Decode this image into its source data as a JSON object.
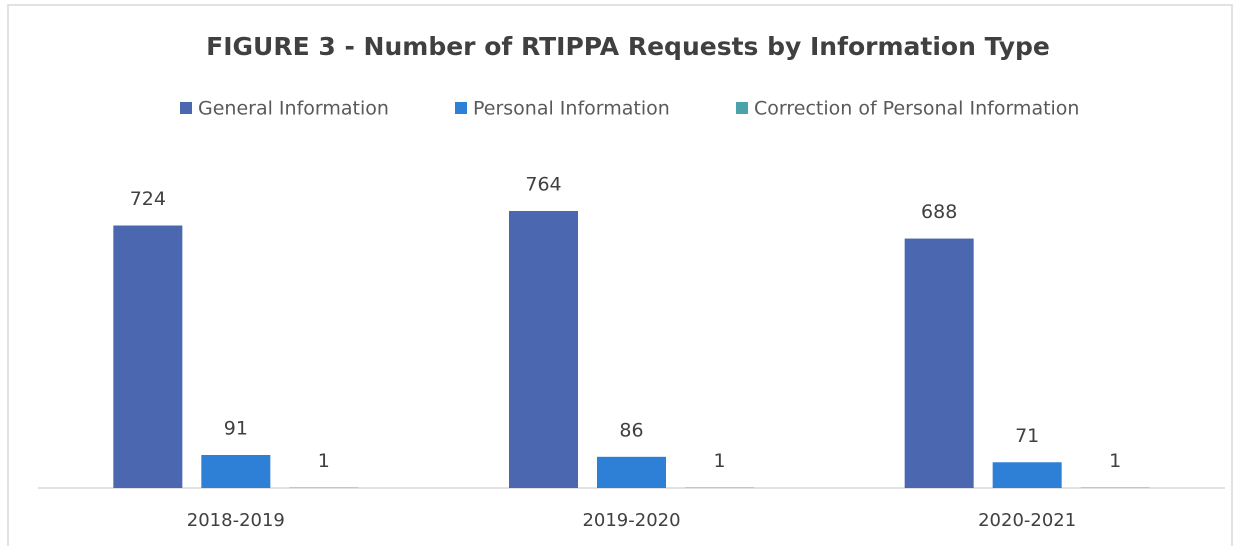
{
  "chart_data": {
    "type": "bar",
    "title": "FIGURE 3 - Number of RTIPPA Requests by Information Type",
    "categories": [
      "2018-2019",
      "2019-2020",
      "2020-2021"
    ],
    "series": [
      {
        "name": "General Information",
        "color": "#4a67b0",
        "values": [
          724,
          764,
          688
        ]
      },
      {
        "name": "Personal Information",
        "color": "#2e7fd6",
        "values": [
          91,
          86,
          71
        ]
      },
      {
        "name": "Correction of Personal Information",
        "color": "#4aa3a8",
        "values": [
          1,
          1,
          1
        ]
      }
    ],
    "legend": "top"
  }
}
